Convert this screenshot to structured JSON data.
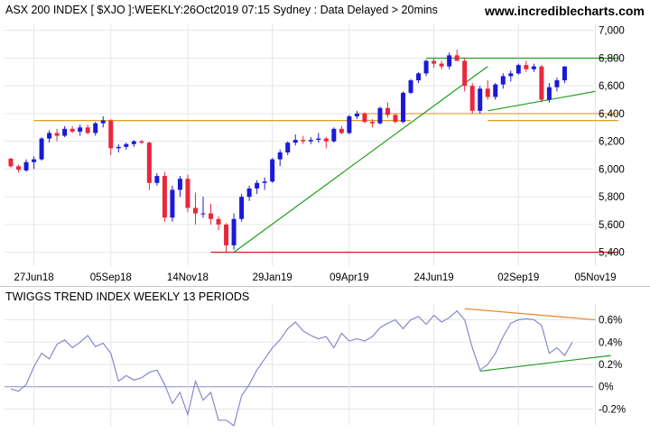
{
  "header": {
    "title": "ASX 200 INDEX [ $XJO ]:WEEKLY:26Oct2019 07:15 Sydney : Data Delayed > 20mins",
    "brand": "www.incrediblecharts.com"
  },
  "colors": {
    "background": "#ffffff",
    "grid": "#e6e6e6",
    "up_candle": "#1a1ad6",
    "down_candle": "#e8283c",
    "support_line": "#e0a020",
    "low_line": "#cc2020",
    "trend_line": "#1e9e1e",
    "indicator_line": "#8888cc",
    "divergence_line": "#f08020"
  },
  "chart_data": [
    {
      "type": "candlestick",
      "title": "ASX 200 INDEX [ $XJO ]:WEEKLY:26Oct2019 07:15 Sydney : Data Delayed > 20mins",
      "ylim": [
        5300,
        7050
      ],
      "y_ticks": [
        "5,400",
        "5,600",
        "5,800",
        "6,000",
        "6,200",
        "6,400",
        "6,600",
        "6,800",
        "7,000"
      ],
      "y_tick_values": [
        5400,
        5600,
        5800,
        6000,
        6200,
        6400,
        6600,
        6800,
        7000
      ],
      "x_ticks": [
        "27Jun18",
        "05Sep18",
        "14Nov18",
        "29Jan19",
        "09Apr19",
        "24Jun19",
        "02Sep19",
        "05Nov19"
      ],
      "x_tick_index": [
        3,
        13,
        23,
        34,
        44,
        55,
        66,
        76
      ],
      "grid": true,
      "candles": [
        [
          6075,
          6080,
          6010,
          6020
        ],
        [
          6020,
          6030,
          5975,
          5995
        ],
        [
          5990,
          6070,
          5980,
          6050
        ],
        [
          6050,
          6090,
          6000,
          6070
        ],
        [
          6070,
          6230,
          6060,
          6220
        ],
        [
          6220,
          6280,
          6190,
          6260
        ],
        [
          6260,
          6290,
          6200,
          6240
        ],
        [
          6240,
          6310,
          6230,
          6290
        ],
        [
          6290,
          6310,
          6260,
          6270
        ],
        [
          6270,
          6320,
          6240,
          6300
        ],
        [
          6300,
          6320,
          6250,
          6260
        ],
        [
          6260,
          6340,
          6240,
          6330
        ],
        [
          6330,
          6380,
          6300,
          6350
        ],
        [
          6350,
          6360,
          6100,
          6150
        ],
        [
          6150,
          6180,
          6120,
          6160
        ],
        [
          6160,
          6190,
          6140,
          6180
        ],
        [
          6180,
          6210,
          6160,
          6200
        ],
        [
          6200,
          6210,
          6180,
          6190
        ],
        [
          6190,
          6200,
          5850,
          5900
        ],
        [
          5900,
          5970,
          5880,
          5950
        ],
        [
          5950,
          5980,
          5620,
          5650
        ],
        [
          5650,
          5880,
          5620,
          5850
        ],
        [
          5850,
          5950,
          5800,
          5930
        ],
        [
          5930,
          5960,
          5690,
          5720
        ],
        [
          5720,
          5830,
          5600,
          5680
        ],
        [
          5680,
          5800,
          5650,
          5680
        ],
        [
          5680,
          5750,
          5600,
          5640
        ],
        [
          5640,
          5660,
          5560,
          5600
        ],
        [
          5600,
          5610,
          5400,
          5450
        ],
        [
          5450,
          5680,
          5420,
          5640
        ],
        [
          5640,
          5820,
          5620,
          5800
        ],
        [
          5800,
          5880,
          5770,
          5860
        ],
        [
          5860,
          5920,
          5820,
          5900
        ],
        [
          5900,
          5940,
          5850,
          5910
        ],
        [
          5910,
          6080,
          5900,
          6070
        ],
        [
          6070,
          6140,
          6020,
          6120
        ],
        [
          6120,
          6200,
          6100,
          6190
        ],
        [
          6190,
          6250,
          6170,
          6210
        ],
        [
          6210,
          6240,
          6180,
          6200
        ],
        [
          6200,
          6230,
          6180,
          6210
        ],
        [
          6210,
          6260,
          6190,
          6220
        ],
        [
          6220,
          6230,
          6150,
          6200
        ],
        [
          6200,
          6300,
          6190,
          6290
        ],
        [
          6290,
          6310,
          6250,
          6260
        ],
        [
          6260,
          6390,
          6250,
          6380
        ],
        [
          6380,
          6420,
          6360,
          6400
        ],
        [
          6400,
          6410,
          6330,
          6340
        ],
        [
          6340,
          6360,
          6300,
          6330
        ],
        [
          6330,
          6450,
          6320,
          6440
        ],
        [
          6440,
          6480,
          6370,
          6390
        ],
        [
          6390,
          6400,
          6330,
          6340
        ],
        [
          6340,
          6560,
          6330,
          6550
        ],
        [
          6550,
          6650,
          6540,
          6640
        ],
        [
          6640,
          6700,
          6620,
          6690
        ],
        [
          6690,
          6790,
          6670,
          6780
        ],
        [
          6780,
          6800,
          6730,
          6760
        ],
        [
          6760,
          6780,
          6720,
          6740
        ],
        [
          6740,
          6840,
          6720,
          6820
        ],
        [
          6820,
          6860,
          6780,
          6780
        ],
        [
          6780,
          6800,
          6560,
          6600
        ],
        [
          6600,
          6620,
          6400,
          6420
        ],
        [
          6420,
          6600,
          6400,
          6580
        ],
        [
          6580,
          6640,
          6500,
          6520
        ],
        [
          6520,
          6620,
          6500,
          6610
        ],
        [
          6610,
          6690,
          6580,
          6670
        ],
        [
          6670,
          6710,
          6630,
          6690
        ],
        [
          6690,
          6760,
          6680,
          6750
        ],
        [
          6750,
          6780,
          6700,
          6720
        ],
        [
          6720,
          6760,
          6700,
          6740
        ],
        [
          6740,
          6750,
          6480,
          6500
        ],
        [
          6500,
          6620,
          6480,
          6590
        ],
        [
          6590,
          6660,
          6560,
          6640
        ],
        [
          6640,
          6740,
          6620,
          6740
        ]
      ],
      "horizontal_lines": [
        {
          "y": 6350,
          "from": 3,
          "to": 52,
          "color": "support_line"
        },
        {
          "y": 6400,
          "from": 45,
          "to": 79,
          "color": "support_line"
        },
        {
          "y": 6350,
          "from": 62,
          "to": 79,
          "color": "support_line"
        },
        {
          "y": 6800,
          "from": 54,
          "to": 79,
          "color": "trend_line"
        },
        {
          "y": 5400,
          "from": 26,
          "to": 79,
          "color": "low_line"
        }
      ],
      "trend_lines": [
        {
          "from": [
            29,
            5400
          ],
          "to": [
            62,
            6740
          ],
          "color": "trend_line"
        },
        {
          "from": [
            62,
            6420
          ],
          "to": [
            76,
            6560
          ],
          "color": "trend_line"
        }
      ]
    },
    {
      "type": "line",
      "title": "TWIGGS TREND INDEX WEEKLY 13 PERIODS",
      "ylim": [
        -0.35,
        0.75
      ],
      "y_ticks": [
        "0.6%",
        "0.4%",
        "0.2%",
        "0%",
        "-0.2%"
      ],
      "y_tick_values": [
        0.6,
        0.4,
        0.2,
        0,
        -0.2
      ],
      "grid": true,
      "zero_line": true,
      "values": [
        -0.02,
        -0.04,
        0.02,
        0.18,
        0.3,
        0.25,
        0.38,
        0.42,
        0.35,
        0.4,
        0.46,
        0.36,
        0.39,
        0.3,
        0.05,
        0.1,
        0.06,
        0.08,
        0.13,
        0.15,
        0.02,
        -0.15,
        -0.05,
        -0.25,
        0.05,
        -0.12,
        -0.05,
        -0.3,
        -0.3,
        -0.35,
        -0.08,
        0.02,
        0.15,
        0.25,
        0.35,
        0.42,
        0.52,
        0.58,
        0.5,
        0.46,
        0.43,
        0.45,
        0.35,
        0.48,
        0.41,
        0.43,
        0.41,
        0.45,
        0.53,
        0.57,
        0.6,
        0.52,
        0.6,
        0.63,
        0.56,
        0.64,
        0.58,
        0.62,
        0.68,
        0.6,
        0.35,
        0.15,
        0.2,
        0.3,
        0.45,
        0.57,
        0.6,
        0.61,
        0.6,
        0.55,
        0.3,
        0.35,
        0.28,
        0.4
      ],
      "trend_lines": [
        {
          "from": [
            59,
            0.7
          ],
          "to": [
            76,
            0.6
          ],
          "color": "divergence_line"
        },
        {
          "from": [
            61,
            0.14
          ],
          "to": [
            78,
            0.28
          ],
          "color": "trend_line"
        }
      ]
    }
  ]
}
